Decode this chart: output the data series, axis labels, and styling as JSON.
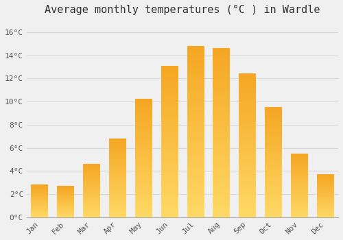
{
  "title": "Average monthly temperatures (°C ) in Wardle",
  "months": [
    "Jan",
    "Feb",
    "Mar",
    "Apr",
    "May",
    "Jun",
    "Jul",
    "Aug",
    "Sep",
    "Oct",
    "Nov",
    "Dec"
  ],
  "values": [
    2.8,
    2.7,
    4.6,
    6.8,
    10.2,
    13.1,
    14.8,
    14.6,
    12.4,
    9.5,
    5.5,
    3.7
  ],
  "bar_color_top": "#F5A623",
  "bar_color_bottom": "#FFD966",
  "background_color": "#f0f0f0",
  "grid_color": "#d8d8d8",
  "ylim": [
    0,
    17
  ],
  "yticks": [
    0,
    2,
    4,
    6,
    8,
    10,
    12,
    14,
    16
  ],
  "ytick_labels": [
    "0°C",
    "2°C",
    "4°C",
    "6°C",
    "8°C",
    "10°C",
    "12°C",
    "14°C",
    "16°C"
  ],
  "title_fontsize": 11,
  "tick_fontsize": 8,
  "bar_width": 0.65
}
